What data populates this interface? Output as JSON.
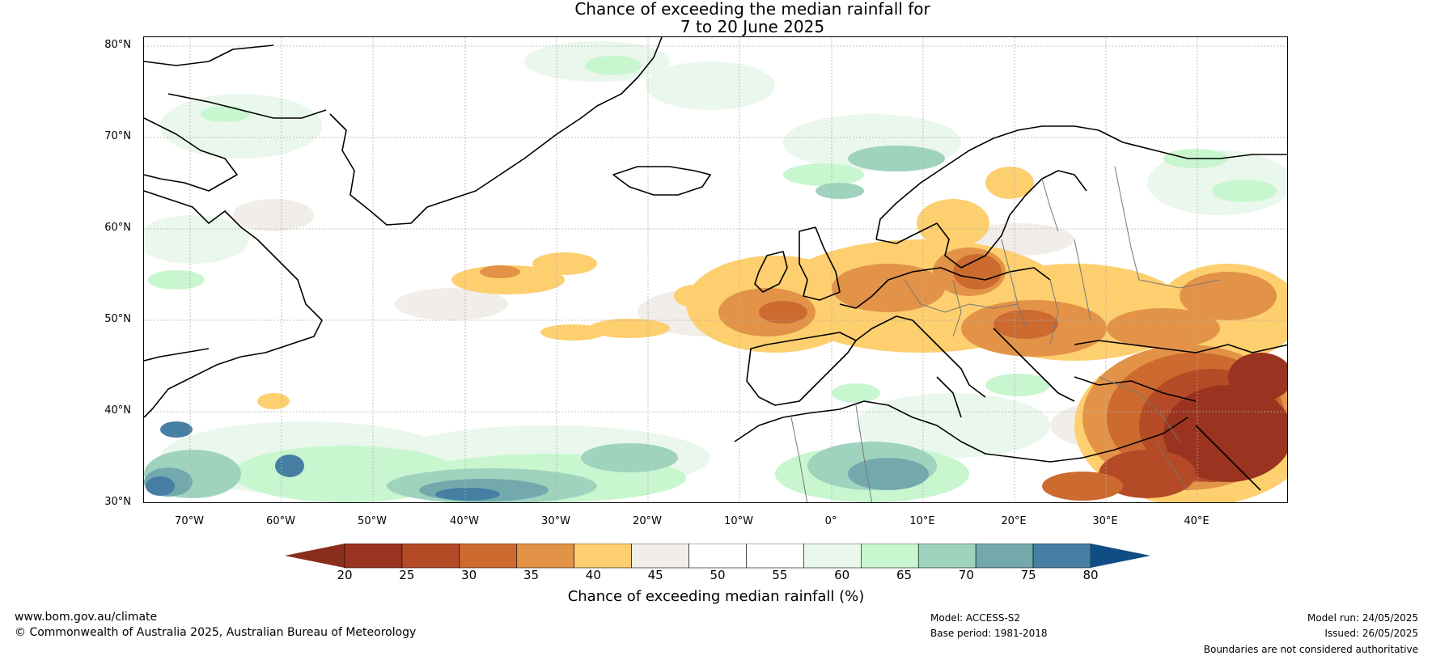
{
  "title_line1": "Chance of exceeding the median rainfall for",
  "title_line2": "7 to 20 June 2025",
  "lat_labels": [
    "80°N",
    "70°N",
    "60°N",
    "50°N",
    "40°N",
    "30°N"
  ],
  "lon_labels": [
    "70°W",
    "60°W",
    "50°W",
    "40°W",
    "30°W",
    "20°W",
    "10°W",
    "0°",
    "10°E",
    "20°E",
    "30°E",
    "40°E"
  ],
  "colorbar": {
    "ticks": [
      "20",
      "25",
      "30",
      "35",
      "40",
      "45",
      "50",
      "55",
      "60",
      "65",
      "70",
      "75",
      "80"
    ],
    "colors": [
      "#9a3420",
      "#b44a26",
      "#cc6a30",
      "#e39347",
      "#fdcf6e",
      "#f1ede9",
      "#ffffff",
      "#ffffff",
      "#eaf7ec",
      "#c8f6cf",
      "#9fd3be",
      "#73a9ad",
      "#467fa3"
    ],
    "low_color": "#8a2d1c",
    "high_color": "#114d85",
    "label": "Chance of exceeding median rainfall (%)"
  },
  "footer": {
    "website": "www.bom.gov.au/climate",
    "copyright": "© Commonwealth of Australia 2025, Australian Bureau of Meteorology",
    "model": "Model: ACCESS-S2",
    "base_period": "Base period: 1981-2018",
    "model_run": "Model run: 24/05/2025",
    "issued": "Issued: 26/05/2025",
    "disclaimer": "Boundaries are not considered authoritative"
  }
}
